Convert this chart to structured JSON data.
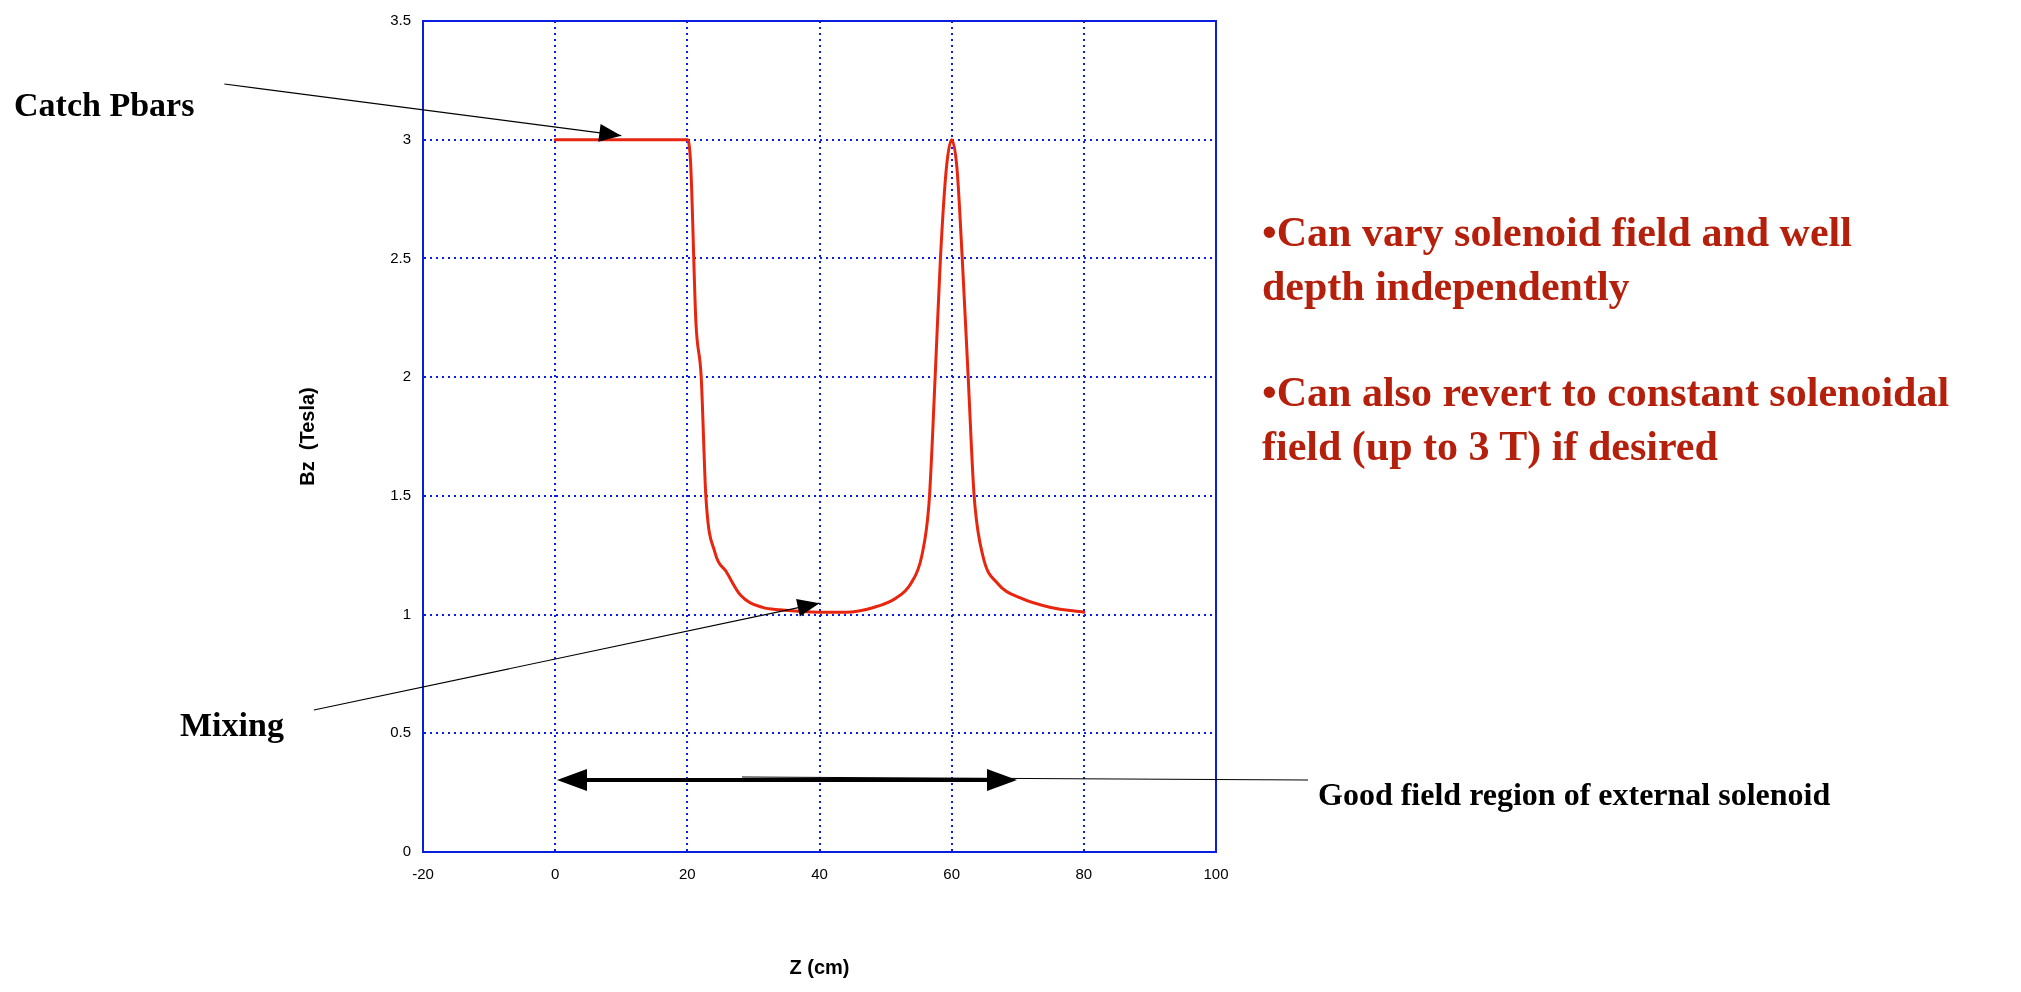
{
  "chart_data": {
    "type": "line",
    "xlabel": "Z (cm)",
    "ylabel": "Bz  (Tesla)",
    "xlim": [
      -20,
      100
    ],
    "xticks": [
      -20,
      0,
      20,
      40,
      60,
      80,
      100
    ],
    "ylim": [
      0,
      3.5
    ],
    "yticks": [
      0,
      0.5,
      1,
      1.5,
      2,
      2.5,
      3,
      3.5
    ],
    "grid": true,
    "legend": false,
    "marker": "none",
    "line_style": "solid",
    "series": [
      {
        "color": "#e8260f",
        "x": [
          0,
          10,
          20,
          20.5,
          21.3,
          22.1,
          22.8,
          24.2,
          25.9,
          28.1,
          31.4,
          34,
          40,
          44,
          48.2,
          51.6,
          53.8,
          55.5,
          56.6,
          57.5,
          58.3,
          59.2,
          60,
          60.8,
          61.6,
          62.5,
          63.4,
          64.7,
          67,
          70.4,
          75,
          80
        ],
        "values": [
          3,
          3,
          3,
          2.9,
          2.23,
          2,
          1.5,
          1.26,
          1.18,
          1.08,
          1.03,
          1.02,
          1.01,
          1.01,
          1.03,
          1.07,
          1.13,
          1.25,
          1.48,
          2,
          2.5,
          2.88,
          3,
          2.88,
          2.5,
          2,
          1.5,
          1.25,
          1.13,
          1.07,
          1.03,
          1.01
        ]
      }
    ],
    "annotations": [
      {
        "text": "Catch Pbars",
        "x": 10,
        "y": 3
      },
      {
        "text": "Mixing",
        "x": 40,
        "y": 1.01
      },
      "•Can vary solenoid field and well depth independently",
      "•Can also revert to constant solenoidal field (up to 3 T) if desired",
      "Good field region of external solenoid"
    ]
  }
}
